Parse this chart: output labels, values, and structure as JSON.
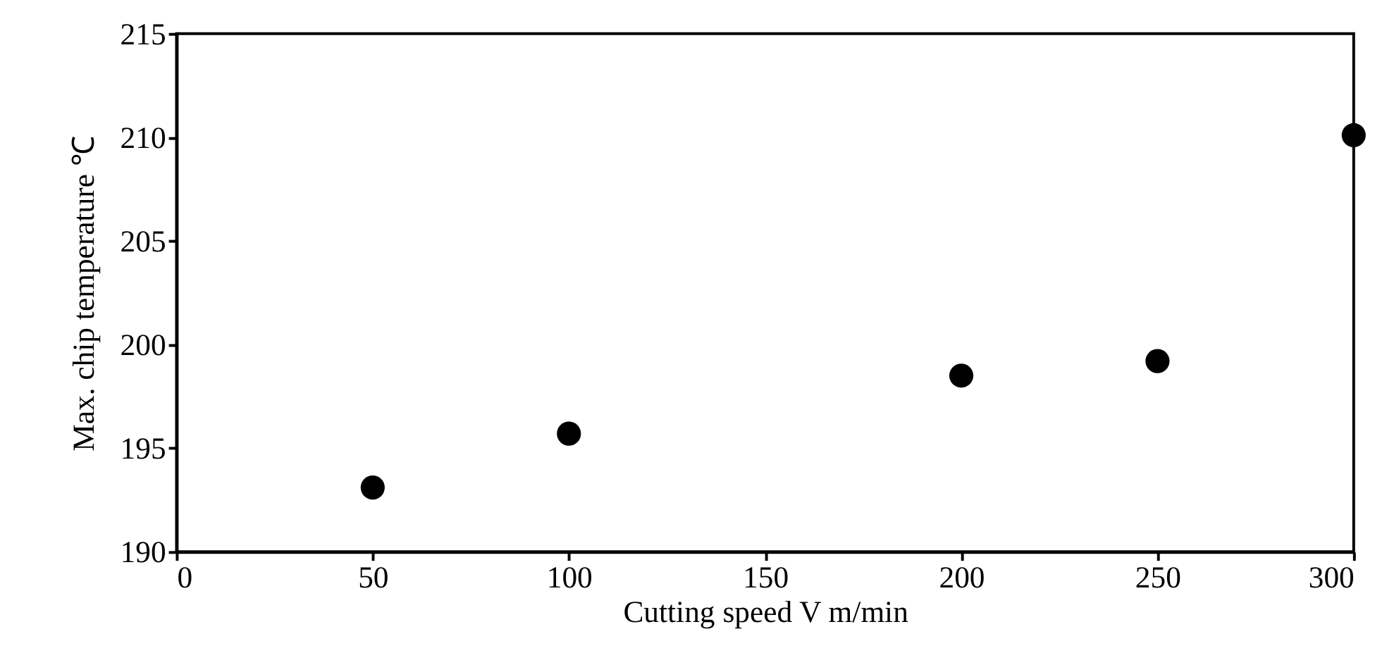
{
  "chart_data": {
    "type": "scatter",
    "xlabel": "Cutting speed V m/min",
    "ylabel": "Max. chip temperature ℃",
    "x": [
      50,
      100,
      200,
      250,
      300
    ],
    "series": [
      {
        "color": "#000000",
        "values": [
          193.1,
          195.7,
          198.5,
          199.2,
          210.1
        ]
      }
    ],
    "xlim": [
      0,
      300
    ],
    "xticks": [
      0,
      50,
      100,
      150,
      200,
      250,
      300
    ],
    "ylim": [
      190,
      215
    ],
    "yticks": [
      190,
      195,
      200,
      205,
      210,
      215
    ],
    "grid": false,
    "legend": false,
    "marker": "circle"
  }
}
